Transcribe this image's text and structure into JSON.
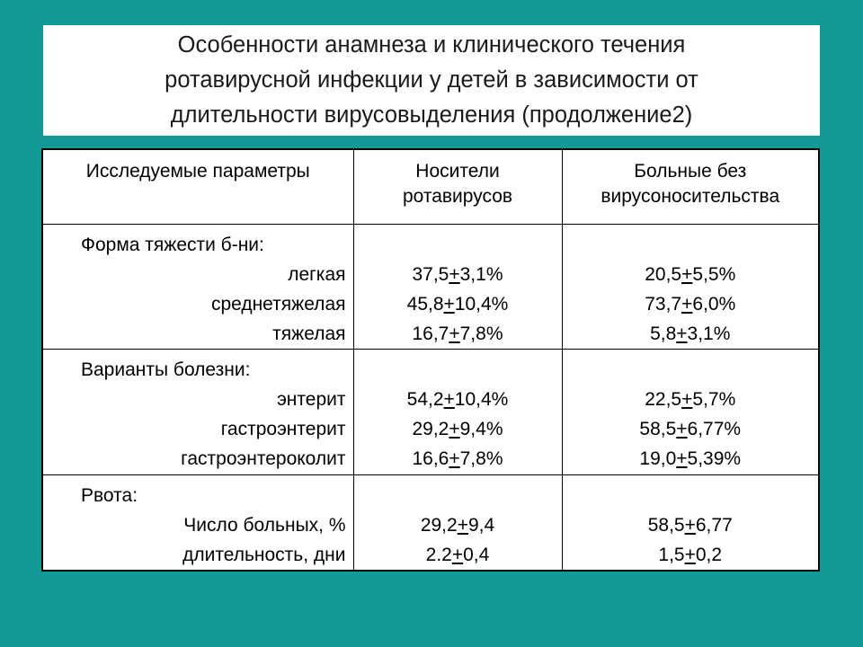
{
  "title": {
    "lines": [
      "Особенности анамнеза и клинического течения",
      "ротавирусной инфекции у детей в зависимости от",
      "длительности вирусовыделения (продолжение2)"
    ]
  },
  "table": {
    "headers": {
      "col1": "Исследуемые параметры",
      "col2_line1": "Носители",
      "col2_line2": "ротавирусов",
      "col3_line1": "Больные без",
      "col3_line2": "вирусоносительства"
    },
    "sections": [
      {
        "group_label": "Форма тяжести б-ни:",
        "rows": [
          {
            "label": "легкая",
            "carriers": {
              "mean": "37,5",
              "pm": "+",
              "err": "3,1%"
            },
            "non_carriers": {
              "mean": "20,5",
              "pm": "+",
              "err": "5,5%"
            }
          },
          {
            "label": "среднетяжелая",
            "carriers": {
              "mean": "45,8",
              "pm": "+",
              "err": "10,4%"
            },
            "non_carriers": {
              "mean": "73,7",
              "pm": "+",
              "err": "6,0%"
            }
          },
          {
            "label": "тяжелая",
            "carriers": {
              "mean": "16,7",
              "pm": "+",
              "err": "7,8%"
            },
            "non_carriers": {
              "mean": "5,8",
              "pm": "+",
              "err": "3,1%"
            }
          }
        ]
      },
      {
        "group_label": "Варианты болезни:",
        "rows": [
          {
            "label": "энтерит",
            "carriers": {
              "mean": "54,2",
              "pm": "+",
              "err": "10,4%"
            },
            "non_carriers": {
              "mean": "22,5",
              "pm": "+",
              "err": "5,7%"
            }
          },
          {
            "label": "гастроэнтерит",
            "carriers": {
              "mean": "29,2",
              "pm": "+",
              "err": "9,4%"
            },
            "non_carriers": {
              "mean": "58,5",
              "pm": "+",
              "err": "6,77%"
            }
          },
          {
            "label": "гастроэнтероколит",
            "carriers": {
              "mean": "16,6",
              "pm": "+",
              "err": "7,8%"
            },
            "non_carriers": {
              "mean": "19,0",
              "pm": "+",
              "err": "5,39%"
            }
          }
        ]
      },
      {
        "group_label": "Рвота:",
        "rows": [
          {
            "label": "Число больных, %",
            "carriers": {
              "mean": "29,2",
              "pm": "+",
              "err": "9,4"
            },
            "non_carriers": {
              "mean": "58,5",
              "pm": "+",
              "err": "6,77"
            }
          },
          {
            "label": "длительность, дни",
            "carriers": {
              "mean": "2.2",
              "pm": "+",
              "err": "0,4"
            },
            "non_carriers": {
              "mean": "1,5",
              "pm": "+",
              "err": "0,2"
            }
          }
        ]
      }
    ]
  },
  "colors": {
    "background": "#129a96",
    "panel": "#ffffff",
    "border": "#000000"
  }
}
